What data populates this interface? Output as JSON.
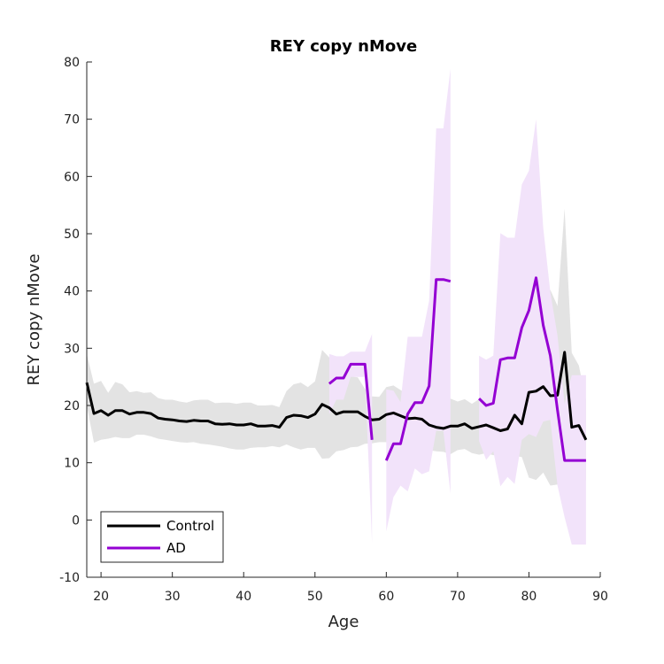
{
  "chart_data": {
    "type": "line",
    "title": "REY copy nMove",
    "xlabel": "Age",
    "ylabel": "REY copy nMove",
    "xlim": [
      18,
      90
    ],
    "ylim": [
      -10,
      80
    ],
    "xticks": [
      20,
      30,
      40,
      50,
      60,
      70,
      80,
      90
    ],
    "yticks": [
      -10,
      0,
      10,
      20,
      30,
      40,
      50,
      60,
      70,
      80
    ],
    "grid": false,
    "legend_position": "bottom-left",
    "series": [
      {
        "name": "Control",
        "color": "#000000",
        "band_color": "#e3e3e3",
        "segments": [
          {
            "x": [
              18,
              19,
              20,
              21,
              22,
              23,
              24,
              25,
              26,
              27,
              28,
              29,
              30,
              31,
              32,
              33,
              34,
              35,
              36,
              37,
              38,
              39,
              40,
              41,
              42,
              43,
              44,
              45,
              46,
              47,
              48,
              49,
              50,
              51,
              52,
              53,
              54,
              55,
              56,
              57,
              58,
              59,
              60,
              61,
              62,
              63,
              64,
              65,
              66,
              67,
              68,
              69,
              70,
              71,
              72,
              73,
              74,
              75,
              76,
              77,
              78,
              79,
              80,
              81,
              82,
              83,
              84,
              85,
              86,
              87,
              88
            ],
            "y": [
              24,
              18.6,
              19.1,
              18.3,
              19.1,
              19.1,
              18.5,
              18.8,
              18.8,
              18.6,
              17.8,
              17.6,
              17.5,
              17.3,
              17.2,
              17.4,
              17.3,
              17.3,
              16.8,
              16.7,
              16.8,
              16.6,
              16.6,
              16.8,
              16.4,
              16.4,
              16.5,
              16.2,
              17.9,
              18.3,
              18.2,
              17.9,
              18.5,
              20.2,
              19.6,
              18.5,
              18.9,
              18.9,
              18.9,
              18.1,
              17.5,
              17.6,
              18.4,
              18.7,
              18.2,
              17.7,
              17.8,
              17.6,
              16.6,
              16.2,
              16,
              16.4,
              16.4,
              16.8,
              16,
              16.3,
              16.6,
              16.1,
              15.6,
              15.9,
              18.3,
              16.8,
              22.3,
              22.5,
              23.3,
              21.7,
              21.8,
              29.3,
              16.2,
              16.5,
              14
            ],
            "lower": [
              20,
              13.5,
              14,
              14.2,
              14.5,
              14.3,
              14.3,
              14.9,
              14.9,
              14.6,
              14.2,
              14,
              13.8,
              13.6,
              13.5,
              13.6,
              13.3,
              13.2,
              13,
              12.8,
              12.5,
              12.3,
              12.3,
              12.6,
              12.7,
              12.7,
              12.9,
              12.7,
              13.2,
              12.7,
              12.3,
              12.6,
              12.6,
              10.7,
              10.8,
              12,
              12.2,
              12.7,
              12.8,
              13.3,
              13.4,
              13.6,
              13.6,
              13.9,
              13.8,
              13.5,
              13.2,
              12.7,
              12.2,
              12,
              11.9,
              11.5,
              12.2,
              12.4,
              11.7,
              11.4,
              11.7,
              11.3,
              11.8,
              10.6,
              11.2,
              11,
              7.4,
              7,
              8.3,
              6,
              6.2,
              4.2,
              3.2,
              6,
              7
            ],
            "upper": [
              29,
              23.8,
              24.3,
              22.2,
              24.1,
              23.7,
              22.3,
              22.5,
              22.2,
              22.3,
              21.3,
              21,
              21,
              20.7,
              20.5,
              20.9,
              21,
              21,
              20.4,
              20.5,
              20.5,
              20.3,
              20.5,
              20.5,
              20,
              20,
              20.1,
              19.7,
              22.5,
              23.7,
              24,
              23.2,
              24.2,
              29.7,
              28.4,
              25.3,
              25.4,
              25.1,
              24.9,
              22.9,
              21.6,
              21.5,
              23.2,
              23.5,
              22.7,
              21.9,
              22.3,
              22.5,
              21.1,
              20.4,
              20.2,
              21.2,
              20.7,
              21.1,
              20.3,
              21.1,
              21.4,
              20.9,
              19.5,
              21.2,
              25.4,
              22.6,
              37.2,
              38,
              38.3,
              40.2,
              37.4,
              54.4,
              29.2,
              27,
              21
            ]
          }
        ]
      },
      {
        "name": "AD",
        "color": "#9400d3",
        "band_color": "#f2e3fa",
        "segments": [
          {
            "x": [
              52,
              53,
              54,
              55,
              56,
              57,
              58
            ],
            "y": [
              23.8,
              24.8,
              24.8,
              27.2,
              27.2,
              27.2,
              14
            ],
            "lower": [
              18.5,
              21,
              21,
              25,
              25,
              25,
              -4
            ],
            "upper": [
              29,
              28.6,
              28.6,
              29.4,
              29.4,
              29.4,
              32.5
            ]
          },
          {
            "x": [
              60,
              61,
              62,
              63,
              64,
              65,
              66,
              67,
              68,
              69
            ],
            "y": [
              10.4,
              13.3,
              13.3,
              18.5,
              20.5,
              20.5,
              23.4,
              42,
              42,
              41.7
            ],
            "lower": [
              -2,
              4,
              6,
              5,
              9,
              8,
              8.5,
              15.6,
              15.6,
              4.6
            ],
            "upper": [
              22.8,
              22.6,
              20.6,
              32,
              32,
              32,
              38.3,
              68.4,
              68.4,
              78.8
            ]
          },
          {
            "x": [
              73,
              74,
              75,
              76,
              77,
              78,
              79,
              80,
              81,
              82,
              83,
              84,
              85,
              86,
              87,
              88
            ],
            "y": [
              21.2,
              20,
              20.4,
              28,
              28.3,
              28.3,
              33.6,
              36.6,
              42.3,
              34,
              28.7,
              19.2,
              10.4,
              10.4,
              10.4,
              10.4
            ],
            "lower": [
              13.8,
              10.5,
              12,
              5.9,
              7.5,
              6.3,
              14,
              15,
              14.5,
              17.2,
              17.5,
              6,
              0.5,
              -4.3,
              -4.3,
              -4.3
            ],
            "upper": [
              28.7,
              28,
              28.7,
              50.1,
              49.3,
              49.3,
              58.6,
              61,
              70,
              51,
              39.8,
              32.2,
              20.3,
              25.3,
              25.3,
              25.3
            ]
          }
        ]
      }
    ]
  }
}
